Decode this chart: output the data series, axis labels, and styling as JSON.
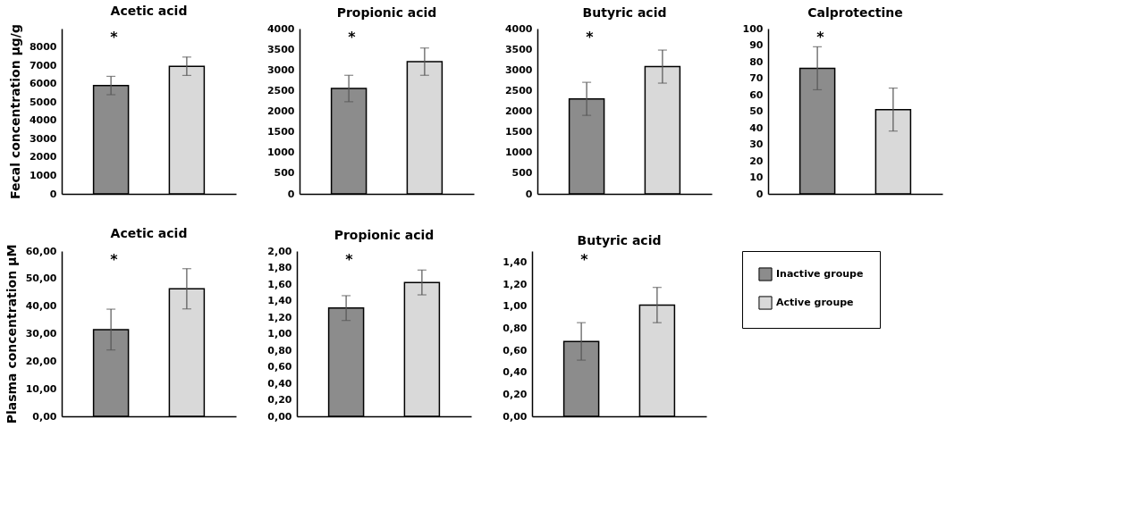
{
  "chart_data": [
    {
      "type": "bar",
      "title": "Acetic acid",
      "ylabel": "Fecal concentration  µg/g",
      "annotations": [
        "*"
      ],
      "categories": [
        null
      ],
      "ylim": [
        0,
        9000
      ],
      "yticks": [
        0,
        1000,
        2000,
        3000,
        4000,
        5000,
        6000,
        7000,
        8000
      ],
      "grid": false,
      "tick_labels": "y",
      "series": [
        {
          "color": "#8c8c8c",
          "values": [
            5900
          ],
          "errors": [
            500
          ]
        },
        {
          "color": "#d9d9d9",
          "values": [
            6950
          ],
          "errors": [
            500
          ]
        }
      ]
    },
    {
      "type": "bar",
      "title": "Propionic acid",
      "annotations": [
        "*"
      ],
      "categories": [
        null
      ],
      "ylim": [
        0,
        4000
      ],
      "yticks": [
        0,
        500,
        1000,
        1500,
        2000,
        2500,
        3000,
        3500,
        4000
      ],
      "grid": false,
      "tick_labels": "y",
      "series": [
        {
          "color": "#8c8c8c",
          "values": [
            2550
          ],
          "errors": [
            320
          ]
        },
        {
          "color": "#d9d9d9",
          "values": [
            3200
          ],
          "errors": [
            330
          ]
        }
      ]
    },
    {
      "type": "bar",
      "title": "Butyric acid",
      "annotations": [
        "*"
      ],
      "categories": [
        null
      ],
      "ylim": [
        0,
        4000
      ],
      "yticks": [
        0,
        500,
        1000,
        1500,
        2000,
        2500,
        3000,
        3500,
        4000
      ],
      "grid": false,
      "tick_labels": "y",
      "series": [
        {
          "color": "#8c8c8c",
          "values": [
            2300
          ],
          "errors": [
            400
          ]
        },
        {
          "color": "#d9d9d9",
          "values": [
            3080
          ],
          "errors": [
            400
          ]
        }
      ]
    },
    {
      "type": "bar",
      "title": "Calprotectine",
      "annotations": [
        "*"
      ],
      "categories": [
        null
      ],
      "ylim": [
        0,
        100
      ],
      "yticks": [
        0,
        10,
        20,
        30,
        40,
        50,
        60,
        70,
        80,
        90,
        100
      ],
      "grid": false,
      "tick_labels": "y",
      "series": [
        {
          "color": "#8c8c8c",
          "values": [
            76
          ],
          "errors": [
            13
          ]
        },
        {
          "color": "#d9d9d9",
          "values": [
            51
          ],
          "errors": [
            13
          ]
        }
      ]
    },
    {
      "type": "bar",
      "title": "Acetic acid",
      "ylabel": "Plasma concentration µM",
      "annotations": [
        "*"
      ],
      "categories": [
        null
      ],
      "ylim": [
        0,
        60
      ],
      "yticks": [
        {
          "value": 0,
          "label": "0,00"
        },
        {
          "value": 10,
          "label": "10,00"
        },
        {
          "value": 20,
          "label": "20,00"
        },
        {
          "value": 30,
          "label": "30,00"
        },
        {
          "value": 40,
          "label": "40,00"
        },
        {
          "value": 50,
          "label": "50,00"
        },
        {
          "value": 60,
          "label": "60,00"
        }
      ],
      "grid": false,
      "tick_labels": "y",
      "series": [
        {
          "color": "#8c8c8c",
          "values": [
            31.5
          ],
          "errors": [
            7.4
          ]
        },
        {
          "color": "#d9d9d9",
          "values": [
            46.3
          ],
          "errors": [
            7.3
          ]
        }
      ]
    },
    {
      "type": "bar",
      "title": "Propionic acid",
      "annotations": [
        "*"
      ],
      "categories": [
        null
      ],
      "ylim": [
        0,
        2
      ],
      "yticks": [
        {
          "value": 0,
          "label": "0,00"
        },
        {
          "value": 0.2,
          "label": "0,20"
        },
        {
          "value": 0.4,
          "label": "0,40"
        },
        {
          "value": 0.6,
          "label": "0,60"
        },
        {
          "value": 0.8,
          "label": "0,80"
        },
        {
          "value": 1.0,
          "label": "1,00"
        },
        {
          "value": 1.2,
          "label": "1,20"
        },
        {
          "value": 1.4,
          "label": "1,40"
        },
        {
          "value": 1.6,
          "label": "1,60"
        },
        {
          "value": 1.8,
          "label": "1,80"
        },
        {
          "value": 2.0,
          "label": "2,00"
        }
      ],
      "grid": false,
      "tick_labels": "y",
      "series": [
        {
          "color": "#8c8c8c",
          "values": [
            1.31
          ],
          "errors": [
            0.15
          ]
        },
        {
          "color": "#d9d9d9",
          "values": [
            1.62
          ],
          "errors": [
            0.15
          ]
        }
      ]
    },
    {
      "type": "bar",
      "title": "Butyric acid",
      "annotations": [
        "*"
      ],
      "categories": [
        null
      ],
      "ylim": [
        0,
        1.5
      ],
      "yticks": [
        {
          "value": 0,
          "label": "0,00"
        },
        {
          "value": 0.2,
          "label": "0,20"
        },
        {
          "value": 0.4,
          "label": "0,40"
        },
        {
          "value": 0.6,
          "label": "0,60"
        },
        {
          "value": 0.8,
          "label": "0,80"
        },
        {
          "value": 1.0,
          "label": "1,00"
        },
        {
          "value": 1.2,
          "label": "1,20"
        },
        {
          "value": 1.4,
          "label": "1,40"
        }
      ],
      "grid": false,
      "tick_labels": "y",
      "legend": "right",
      "series": [
        {
          "name": "Inactive groupe",
          "color": "#8c8c8c",
          "values": [
            0.68
          ],
          "errors": [
            0.17
          ]
        },
        {
          "name": "Active groupe",
          "color": "#d9d9d9",
          "values": [
            1.01
          ],
          "errors": [
            0.16
          ]
        }
      ]
    }
  ]
}
